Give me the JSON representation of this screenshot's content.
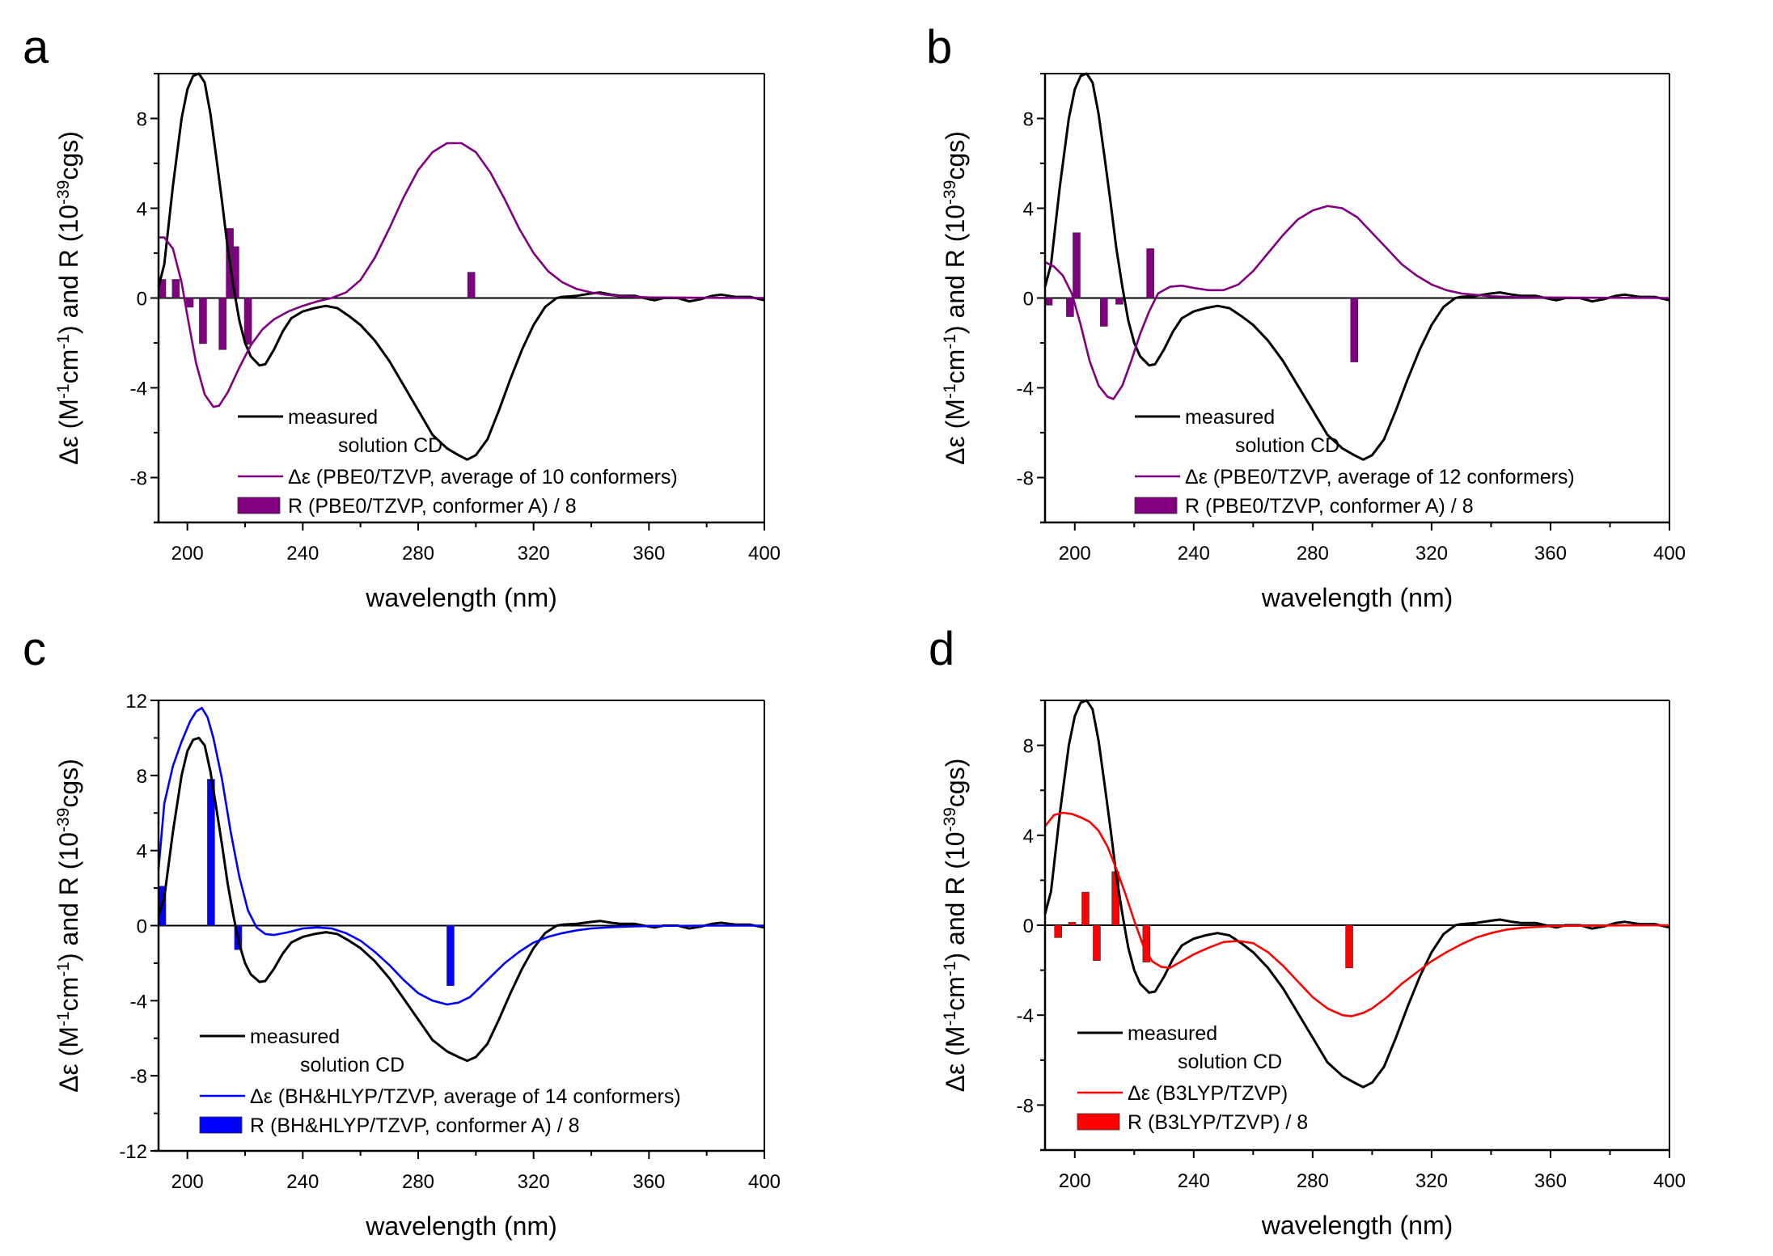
{
  "figure": {
    "panels_order": [
      "a",
      "b",
      "c",
      "d"
    ]
  },
  "chart_data": [
    {
      "panel": "a",
      "type": "line",
      "title": "",
      "xlabel": "wavelength (nm)",
      "ylabel": "Δε (M⁻¹cm⁻¹) and R (10⁻³⁹cgs)",
      "xlim": [
        190,
        400
      ],
      "ylim": [
        -10,
        10
      ],
      "xticks": [
        200,
        240,
        280,
        320,
        360,
        400
      ],
      "yticks": [
        -8,
        -4,
        0,
        4,
        8
      ],
      "yminor_step": 2,
      "xminor_step": 20,
      "legend_position": "lower-left",
      "legend": [
        {
          "label_line1": "measured",
          "label_line2": "solution CD",
          "kind": "line",
          "color": "#000000"
        },
        {
          "label_line1": "Δε (PBE0/TZVP, average of 10 conformers)",
          "kind": "line",
          "color": "#800080"
        },
        {
          "label_line1": "R (PBE0/TZVP, conformer A) / 8",
          "kind": "bar",
          "color": "#800080"
        }
      ],
      "series": [
        {
          "name": "measured solution CD",
          "color": "#000000",
          "kind": "line",
          "ref": "measured"
        },
        {
          "name": "Δε (PBE0/TZVP, average of 10 conformers)",
          "color": "#800080",
          "kind": "line",
          "x": [
            190,
            192,
            195,
            198,
            200,
            203,
            206,
            209,
            211,
            214,
            218,
            222,
            226,
            230,
            235,
            240,
            245,
            250,
            255,
            260,
            265,
            270,
            275,
            280,
            285,
            290,
            295,
            300,
            305,
            310,
            315,
            320,
            325,
            330,
            335,
            340,
            345,
            350,
            360,
            380,
            400
          ],
          "y": [
            2.7,
            2.7,
            2.2,
            0.7,
            -0.8,
            -2.9,
            -4.3,
            -4.85,
            -4.8,
            -4.2,
            -3.1,
            -2.1,
            -1.4,
            -0.95,
            -0.6,
            -0.35,
            -0.15,
            0.0,
            0.25,
            0.8,
            1.8,
            3.1,
            4.5,
            5.7,
            6.5,
            6.9,
            6.9,
            6.5,
            5.6,
            4.4,
            3.1,
            2.0,
            1.2,
            0.7,
            0.4,
            0.25,
            0.15,
            0.08,
            0.03,
            0.01,
            0.0
          ]
        },
        {
          "name": "R (PBE0/TZVP, conformer A) / 8",
          "color": "#800080",
          "kind": "bar",
          "x": [
            191.0,
            196.0,
            200.8,
            205.4,
            212.2,
            214.7,
            216.6,
            221.0,
            298.4
          ],
          "y": [
            0.83,
            0.83,
            -0.41,
            -2.03,
            -2.3,
            3.1,
            2.29,
            -2.06,
            1.15
          ]
        }
      ]
    },
    {
      "panel": "b",
      "type": "line",
      "title": "",
      "xlabel": "wavelength (nm)",
      "ylabel": "Δε (M⁻¹cm⁻¹) and R (10⁻³⁹cgs)",
      "xlim": [
        190,
        400
      ],
      "ylim": [
        -10,
        10
      ],
      "xticks": [
        200,
        240,
        280,
        320,
        360,
        400
      ],
      "yticks": [
        -8,
        -4,
        0,
        4,
        8
      ],
      "yminor_step": 2,
      "xminor_step": 20,
      "legend_position": "lower-left",
      "legend": [
        {
          "label_line1": "measured",
          "label_line2": "solution CD",
          "kind": "line",
          "color": "#000000"
        },
        {
          "label_line1": "Δε (PBE0/TZVP, average of 12 conformers)",
          "kind": "line",
          "color": "#800080"
        },
        {
          "label_line1": "R (PBE0/TZVP, conformer A) / 8",
          "kind": "bar",
          "color": "#800080"
        }
      ],
      "series": [
        {
          "name": "measured solution CD",
          "color": "#000000",
          "kind": "line",
          "ref": "measured"
        },
        {
          "name": "Δε (PBE0/TZVP, average of 12 conformers)",
          "color": "#800080",
          "kind": "line",
          "x": [
            190,
            193,
            196,
            199,
            202,
            205,
            208,
            211,
            213,
            216,
            219,
            222,
            225,
            228,
            232,
            236,
            240,
            245,
            250,
            255,
            260,
            265,
            270,
            275,
            280,
            285,
            290,
            295,
            300,
            305,
            310,
            315,
            320,
            325,
            330,
            340,
            350,
            400
          ],
          "y": [
            1.6,
            1.4,
            1.0,
            0.2,
            -1.2,
            -2.8,
            -3.9,
            -4.4,
            -4.5,
            -3.9,
            -2.8,
            -1.6,
            -0.6,
            0.2,
            0.5,
            0.55,
            0.45,
            0.35,
            0.35,
            0.6,
            1.2,
            2.0,
            2.8,
            3.5,
            3.9,
            4.1,
            4.0,
            3.6,
            2.9,
            2.2,
            1.5,
            1.0,
            0.6,
            0.35,
            0.2,
            0.08,
            0.03,
            0.0
          ]
        },
        {
          "name": "R (PBE0/TZVP, conformer A) / 8",
          "color": "#800080",
          "kind": "bar",
          "x": [
            191.0,
            198.4,
            200.6,
            209.8,
            215.0,
            225.4,
            294.0
          ],
          "y": [
            -0.32,
            -0.83,
            2.91,
            -1.26,
            -0.28,
            2.2,
            -2.85
          ]
        }
      ]
    },
    {
      "panel": "c",
      "type": "line",
      "title": "",
      "xlabel": "wavelength (nm)",
      "ylabel": "Δε (M⁻¹cm⁻¹) and R (10⁻³⁹cgs)",
      "xlim": [
        190,
        400
      ],
      "ylim": [
        -12,
        12
      ],
      "xticks": [
        200,
        240,
        280,
        320,
        360,
        400
      ],
      "yticks": [
        -12,
        -8,
        -4,
        0,
        4,
        8,
        12
      ],
      "yminor_step": 2,
      "xminor_step": 20,
      "legend_position": "lower-left",
      "legend": [
        {
          "label_line1": "measured",
          "label_line2": "solution CD",
          "kind": "line",
          "color": "#000000"
        },
        {
          "label_line1": "Δε (BH&HLYP/TZVP, average of 14 conformers)",
          "kind": "line",
          "color": "#0000ff"
        },
        {
          "label_line1": "R (BH&HLYP/TZVP, conformer A) / 8",
          "kind": "bar",
          "color": "#0000ff"
        }
      ],
      "series": [
        {
          "name": "measured solution CD",
          "color": "#000000",
          "kind": "line",
          "ref": "measured"
        },
        {
          "name": "Δε (BH&HLYP/TZVP, average of 14 conformers)",
          "color": "#0000ff",
          "kind": "line",
          "x": [
            190,
            192,
            195,
            198,
            201,
            203,
            205,
            207,
            209,
            212,
            215,
            218,
            221,
            224,
            227,
            230,
            235,
            240,
            245,
            250,
            255,
            260,
            265,
            270,
            275,
            280,
            285,
            290,
            294,
            298,
            302,
            306,
            310,
            315,
            320,
            325,
            330,
            335,
            340,
            350,
            360,
            380,
            400
          ],
          "y": [
            3.0,
            6.5,
            8.5,
            9.8,
            10.9,
            11.4,
            11.6,
            11.1,
            10.0,
            7.8,
            5.0,
            2.6,
            0.8,
            -0.1,
            -0.45,
            -0.5,
            -0.35,
            -0.15,
            -0.1,
            -0.15,
            -0.4,
            -0.8,
            -1.4,
            -2.1,
            -2.9,
            -3.6,
            -4.0,
            -4.2,
            -4.1,
            -3.8,
            -3.2,
            -2.6,
            -2.0,
            -1.4,
            -0.9,
            -0.6,
            -0.4,
            -0.25,
            -0.15,
            -0.06,
            -0.02,
            0.0,
            0.0
          ]
        },
        {
          "name": "R (BH&HLYP/TZVP, conformer A) / 8",
          "color": "#0000ff",
          "kind": "bar",
          "x": [
            191.0,
            208.2,
            217.6,
            291.2
          ],
          "y": [
            2.1,
            7.8,
            -1.28,
            -3.2
          ]
        }
      ]
    },
    {
      "panel": "d",
      "type": "line",
      "title": "",
      "xlabel": "wavelength (nm)",
      "ylabel": "Δε (M⁻¹cm⁻¹) and R (10⁻³⁹cgs)",
      "xlim": [
        190,
        400
      ],
      "ylim": [
        -10,
        10
      ],
      "xticks": [
        200,
        240,
        280,
        320,
        360,
        400
      ],
      "yticks": [
        -8,
        -4,
        0,
        4,
        8
      ],
      "yminor_step": 2,
      "xminor_step": 20,
      "legend_position": "lower-left",
      "legend": [
        {
          "label_line1": "measured",
          "label_line2": "solution CD",
          "kind": "line",
          "color": "#000000"
        },
        {
          "label_line1": "Δε (B3LYP/TZVP)",
          "kind": "line",
          "color": "#ff0000"
        },
        {
          "label_line1": "R (B3LYP/TZVP) / 8",
          "kind": "bar",
          "color": "#ff0000"
        }
      ],
      "series": [
        {
          "name": "measured solution CD",
          "color": "#000000",
          "kind": "line",
          "ref": "measured"
        },
        {
          "name": "Δε (B3LYP/TZVP)",
          "color": "#ff0000",
          "kind": "line",
          "x": [
            190,
            193,
            196,
            199,
            202,
            205,
            208,
            211,
            214,
            217,
            220,
            223,
            226,
            229,
            232,
            236,
            240,
            245,
            250,
            255,
            260,
            265,
            270,
            275,
            280,
            285,
            290,
            293,
            297,
            300,
            305,
            310,
            315,
            320,
            325,
            330,
            335,
            340,
            345,
            350,
            360,
            380,
            400
          ],
          "y": [
            4.4,
            4.9,
            5.0,
            4.95,
            4.8,
            4.6,
            4.2,
            3.5,
            2.5,
            1.4,
            0.2,
            -0.9,
            -1.6,
            -1.85,
            -1.9,
            -1.6,
            -1.3,
            -1.0,
            -0.75,
            -0.7,
            -0.8,
            -1.2,
            -1.8,
            -2.5,
            -3.2,
            -3.7,
            -4.0,
            -4.05,
            -3.9,
            -3.7,
            -3.2,
            -2.6,
            -2.1,
            -1.6,
            -1.2,
            -0.85,
            -0.55,
            -0.35,
            -0.2,
            -0.12,
            -0.04,
            -0.01,
            0.0
          ]
        },
        {
          "name": "R (B3LYP/TZVP) / 8",
          "color": "#ff0000",
          "kind": "bar",
          "x": [
            194.4,
            199.1,
            203.6,
            207.4,
            213.7,
            224.1,
            292.3
          ],
          "y": [
            -0.55,
            0.13,
            1.47,
            -1.57,
            2.38,
            -1.64,
            -1.9
          ]
        }
      ]
    }
  ],
  "measured": {
    "name": "measured solution CD",
    "color": "#000000",
    "x": [
      190,
      192,
      195,
      198,
      200,
      202,
      204,
      206,
      208,
      210,
      212,
      214,
      216,
      218,
      220,
      222,
      225,
      227,
      230,
      233,
      236,
      240,
      244,
      248,
      252,
      256,
      260,
      265,
      270,
      275,
      280,
      285,
      290,
      294,
      297,
      300,
      304,
      308,
      312,
      316,
      320,
      324,
      328,
      330,
      335,
      340,
      343,
      347,
      350,
      355,
      360,
      362,
      365,
      370,
      374,
      378,
      382,
      385,
      390,
      395,
      400
    ],
    "y": [
      0.5,
      1.5,
      5.0,
      8.0,
      9.3,
      9.9,
      10.0,
      9.6,
      8.2,
      6.3,
      4.3,
      2.2,
      0.5,
      -1.0,
      -2.0,
      -2.6,
      -3.0,
      -2.95,
      -2.3,
      -1.5,
      -0.9,
      -0.6,
      -0.45,
      -0.35,
      -0.45,
      -0.8,
      -1.2,
      -1.9,
      -2.8,
      -3.9,
      -5.0,
      -6.1,
      -6.7,
      -7.0,
      -7.2,
      -7.0,
      -6.3,
      -5.0,
      -3.6,
      -2.3,
      -1.2,
      -0.4,
      0.0,
      0.05,
      0.1,
      0.2,
      0.25,
      0.15,
      0.1,
      0.1,
      -0.05,
      -0.1,
      0.0,
      0.0,
      -0.15,
      -0.05,
      0.1,
      0.15,
      0.05,
      0.05,
      -0.1
    ]
  },
  "labels": {
    "panel_a": "a",
    "panel_b": "b",
    "panel_c": "c",
    "panel_d": "d",
    "xlabel": "wavelength (nm)",
    "ylabel_delta": "Δε (M",
    "ylabel_sup1": "-1",
    "ylabel_cm": "cm",
    "ylabel_sup2": "-1",
    "ylabel_mid": ") and R (10",
    "ylabel_sup3": "-39",
    "ylabel_end": "cgs)"
  }
}
